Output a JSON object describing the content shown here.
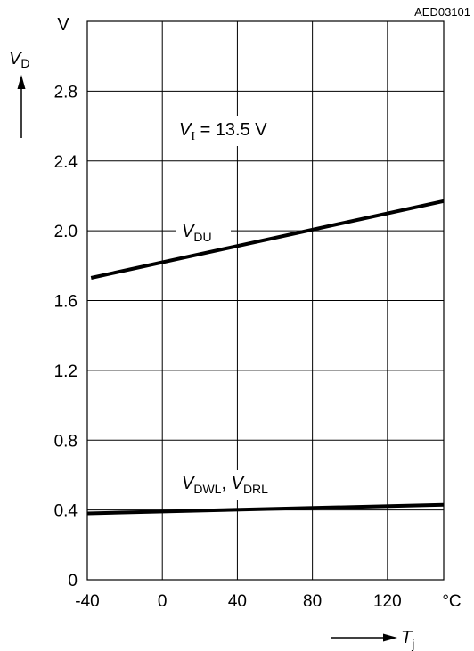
{
  "figure_id": "AED03101",
  "annotation": {
    "vi_symbol": "V",
    "vi_sub": "I",
    "vi_rest": " = 13.5 V"
  },
  "chart_data": {
    "type": "line",
    "grid": true,
    "xlim": [
      -40,
      150
    ],
    "ylim": [
      0,
      3.2
    ],
    "x_ticks": [
      -40,
      0,
      40,
      80,
      120
    ],
    "x_tick_labels": [
      "-40",
      "0",
      "40",
      "80",
      "120"
    ],
    "y_ticks": [
      0,
      0.4,
      0.8,
      1.2,
      1.6,
      2.0,
      2.4,
      2.8
    ],
    "y_tick_labels": [
      "0",
      "0.4",
      "0.8",
      "1.2",
      "1.6",
      "2.0",
      "2.4",
      "2.8"
    ],
    "x_unit": "°C",
    "y_unit": "V",
    "xlabel": {
      "symbol": "T",
      "sub": "j"
    },
    "ylabel": {
      "symbol": "V",
      "sub": "D"
    },
    "series": [
      {
        "label_parts": [
          {
            "symbol": "V",
            "sub": "DU"
          }
        ],
        "x": [
          -38,
          150
        ],
        "y": [
          1.73,
          2.17
        ]
      },
      {
        "label_parts": [
          {
            "symbol": "V",
            "sub": "DWL"
          },
          {
            "symbol": "V",
            "sub": "DRL"
          }
        ],
        "x": [
          -40,
          150
        ],
        "y": [
          0.38,
          0.43
        ]
      }
    ]
  }
}
